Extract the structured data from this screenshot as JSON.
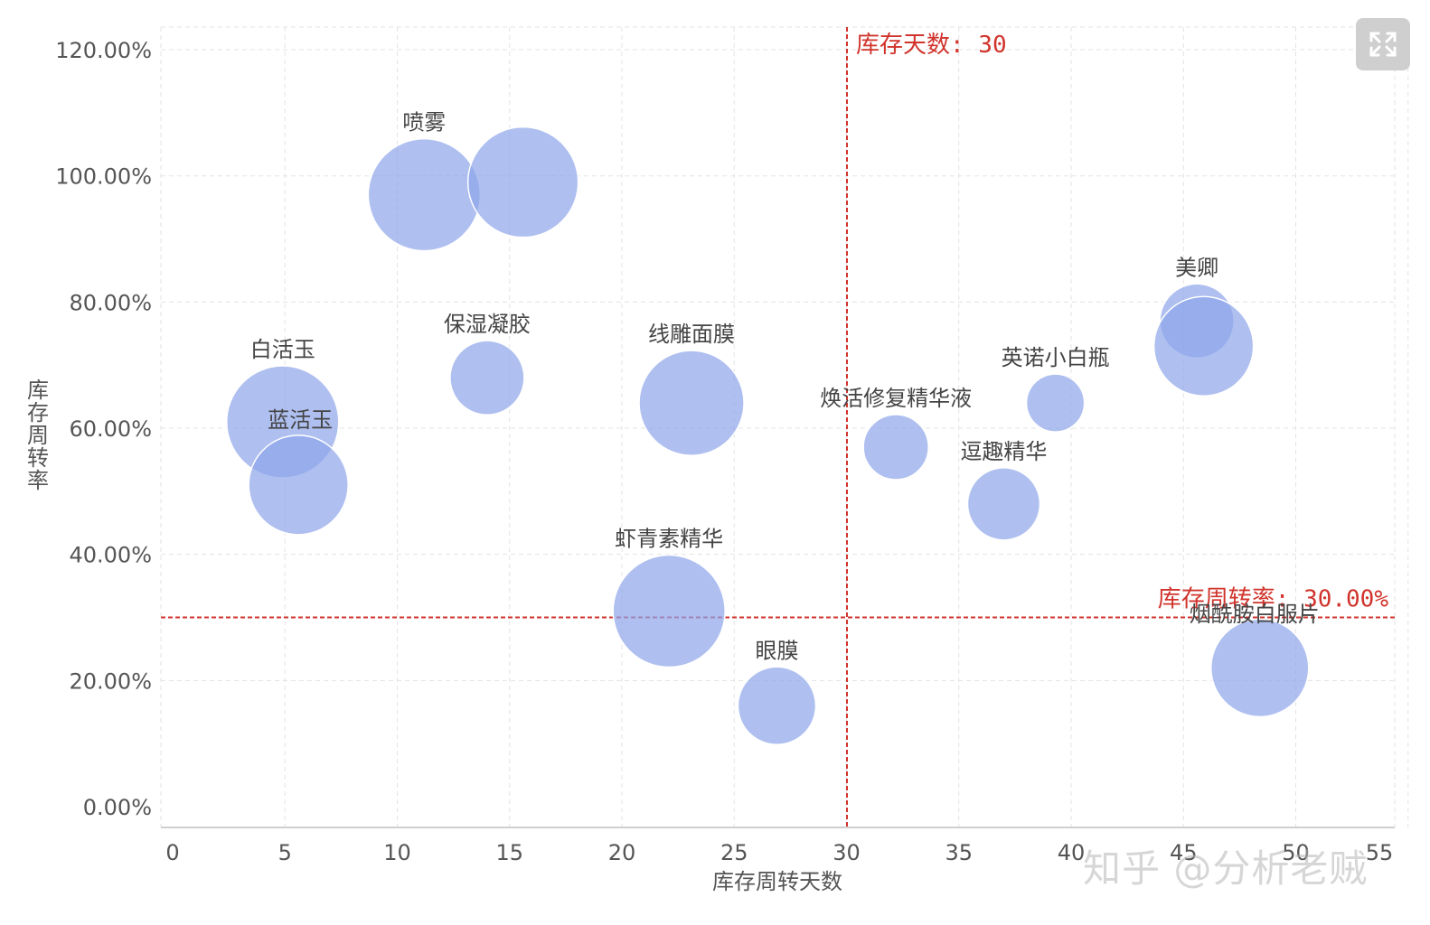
{
  "chart_data": {
    "type": "scatter",
    "subtype": "bubble",
    "xlabel": "库存周转天数",
    "ylabel": "库存周转率",
    "xlim": [
      0,
      55
    ],
    "ylim": [
      0,
      1.2
    ],
    "x_ticks": [
      "0",
      "5",
      "10",
      "15",
      "20",
      "25",
      "30",
      "35",
      "40",
      "45",
      "50",
      "55"
    ],
    "y_ticks": [
      "0.00%",
      "20.00%",
      "40.00%",
      "60.00%",
      "80.00%",
      "100.00%",
      "120.00%"
    ],
    "grid": true,
    "bubble_color": "#8fa6ea",
    "points": [
      {
        "label": "喷雾",
        "x": 11.2,
        "y": 0.97,
        "size": 62
      },
      {
        "label": "",
        "x": 15.6,
        "y": 0.99,
        "size": 61
      },
      {
        "label": "保湿凝胶",
        "x": 14.0,
        "y": 0.68,
        "size": 41
      },
      {
        "label": "白活玉",
        "x": 4.9,
        "y": 0.61,
        "size": 62
      },
      {
        "label": "蓝活玉",
        "x": 5.6,
        "y": 0.51,
        "size": 55
      },
      {
        "label": "线雕面膜",
        "x": 23.1,
        "y": 0.64,
        "size": 58
      },
      {
        "label": "虾青素精华",
        "x": 22.1,
        "y": 0.31,
        "size": 62
      },
      {
        "label": "眼膜",
        "x": 26.9,
        "y": 0.16,
        "size": 43
      },
      {
        "label": "焕活修复精华液",
        "x": 32.2,
        "y": 0.57,
        "size": 36
      },
      {
        "label": "英诺小白瓶",
        "x": 39.3,
        "y": 0.64,
        "size": 32
      },
      {
        "label": "逗趣精华",
        "x": 37.0,
        "y": 0.48,
        "size": 40
      },
      {
        "label": "美卿",
        "x": 45.6,
        "y": 0.77,
        "size": 41
      },
      {
        "label": "",
        "x": 45.9,
        "y": 0.73,
        "size": 55
      },
      {
        "label": "烟酰胺白服片",
        "x": 48.4,
        "y": 0.22,
        "size": 54
      }
    ],
    "reference_lines": [
      {
        "axis": "x",
        "value": 30,
        "label": "库存天数: 30",
        "color": "#d0342c"
      },
      {
        "axis": "y",
        "value": 0.3,
        "label": "库存周转率: 30.00%",
        "color": "#d0342c"
      }
    ]
  },
  "watermark": "知乎 @分析老贼",
  "expand_button": {
    "icon": "expand-icon"
  }
}
